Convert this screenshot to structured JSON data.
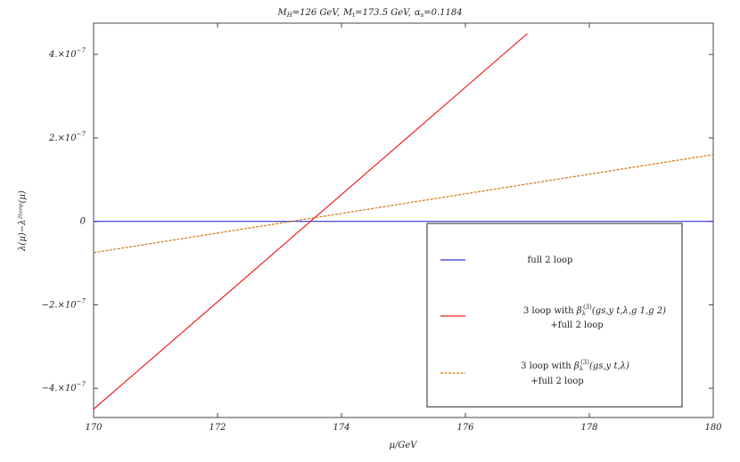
{
  "chart_data": {
    "type": "line",
    "title_parts": {
      "mh": "M",
      "mh_sub": "H",
      "mh_val": "=126 GeV,",
      "mt": "M",
      "mt_sub": "t",
      "mt_val": "=173.5 GeV,",
      "as": "α",
      "as_sub": "s",
      "as_val": "=0.1184"
    },
    "xlabel": "μ/GeV",
    "ylabel": "λ(μ)−λ²ˡᵒᵒᵖ(μ)",
    "xlim": [
      170,
      180
    ],
    "ylim": [
      -4.7e-07,
      4.75e-07
    ],
    "x_ticks": [
      {
        "value": 170,
        "label": "170"
      },
      {
        "value": 172,
        "label": "172"
      },
      {
        "value": 174,
        "label": "174"
      },
      {
        "value": 176,
        "label": "176"
      },
      {
        "value": 178,
        "label": "178"
      },
      {
        "value": 180,
        "label": "180"
      }
    ],
    "y_ticks": [
      {
        "value": -4e-07,
        "mant": "−4.×10",
        "exp": "−7"
      },
      {
        "value": -2e-07,
        "mant": "−2.×10",
        "exp": "−7"
      },
      {
        "value": 0,
        "mant": "0",
        "exp": ""
      },
      {
        "value": 2e-07,
        "mant": "2.×10",
        "exp": "−7"
      },
      {
        "value": 4e-07,
        "mant": "4.×10",
        "exp": "−7"
      }
    ],
    "series": [
      {
        "id": "full2",
        "color": "#3333dd",
        "dash": "",
        "x": [
          170,
          180
        ],
        "y": [
          0,
          0
        ]
      },
      {
        "id": "three_full",
        "color": "#ee2222",
        "dash": "",
        "x": [
          170,
          177
        ],
        "y": [
          -4.5e-07,
          4.5e-07
        ]
      },
      {
        "id": "three_partial",
        "color": "#cc7711",
        "dash": "3,1.5",
        "x": [
          170,
          180
        ],
        "y": [
          -7.5e-08,
          1.6e-07
        ]
      }
    ],
    "legend": {
      "placement": "bottom-right",
      "entries": [
        {
          "series": "full2",
          "line1": "full 2 loop",
          "line2": ""
        },
        {
          "series": "three_full",
          "line1_pre": "3 loop with ",
          "beta": "β",
          "beta_sub": "λ",
          "beta_sup": "(3)",
          "args": "(g",
          "args_detail": "s,y t,λ,g 1,g 2)",
          "line2": "+full 2 loop"
        },
        {
          "series": "three_partial",
          "line1_pre": "3 loop with ",
          "beta": "β",
          "beta_sub": "λ",
          "beta_sup": "(3)",
          "args": "(g",
          "args_detail": "s,y t,λ)",
          "line2": "+full 2 loop"
        }
      ]
    }
  }
}
